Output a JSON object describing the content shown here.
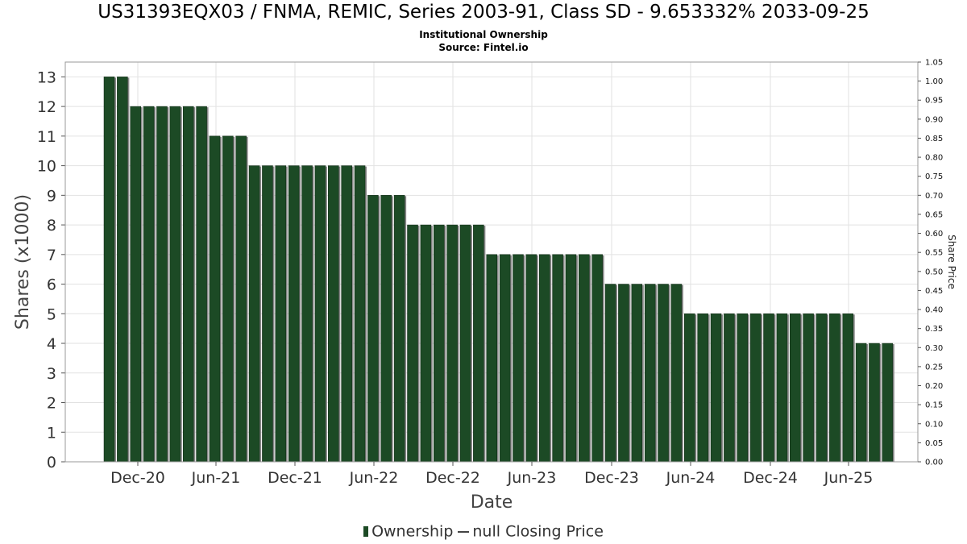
{
  "chart_data": {
    "type": "bar",
    "title": "US31393EQX03 / FNMA, REMIC, Series 2003-91, Class SD - 9.653332% 2033-09-25",
    "subtitle": "Institutional Ownership",
    "source": "Source: Fintel.io",
    "xlabel": "Date",
    "ylabel": "Shares (x1000)",
    "y2label": "Share Price",
    "ylim": [
      0,
      13.5
    ],
    "y2lim": [
      0,
      1.05
    ],
    "yticks": [
      "0",
      "1",
      "2",
      "3",
      "4",
      "5",
      "6",
      "7",
      "8",
      "9",
      "10",
      "11",
      "12",
      "13"
    ],
    "y2ticks": [
      "0.00",
      "0.05",
      "0.10",
      "0.15",
      "0.20",
      "0.25",
      "0.30",
      "0.35",
      "0.40",
      "0.45",
      "0.50",
      "0.55",
      "0.60",
      "0.65",
      "0.70",
      "0.75",
      "0.80",
      "0.85",
      "0.90",
      "0.95",
      "1.00",
      "1.05"
    ],
    "xticks": [
      "Dec-20",
      "Jun-21",
      "Dec-21",
      "Jun-22",
      "Dec-22",
      "Jun-23",
      "Dec-23",
      "Jun-24",
      "Dec-24",
      "Jun-25"
    ],
    "grid": true,
    "series": [
      {
        "name": "Ownership",
        "values": [
          13,
          13,
          12,
          12,
          12,
          12,
          12,
          12,
          11,
          11,
          11,
          10,
          10,
          10,
          10,
          10,
          10,
          10,
          10,
          10,
          9,
          9,
          9,
          8,
          8,
          8,
          8,
          8,
          8,
          7,
          7,
          7,
          7,
          7,
          7,
          7,
          7,
          7,
          6,
          6,
          6,
          6,
          6,
          6,
          5,
          5,
          5,
          5,
          5,
          5,
          5,
          5,
          5,
          5,
          5,
          5,
          5,
          4,
          4,
          4
        ]
      },
      {
        "name": "null Closing Price",
        "values": []
      }
    ],
    "legend_position": "bottom-center",
    "bar_color": "#1c4a25"
  }
}
